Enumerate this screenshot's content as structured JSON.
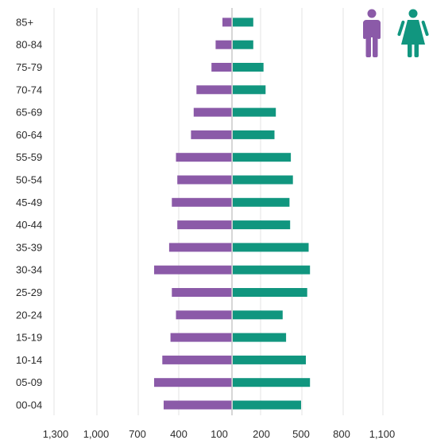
{
  "chart_data": {
    "type": "bar",
    "orientation": "horizontal",
    "subtype": "population-pyramid",
    "categories": [
      "00-04",
      "05-09",
      "10-14",
      "15-19",
      "20-24",
      "25-29",
      "30-34",
      "35-39",
      "40-44",
      "45-49",
      "50-54",
      "55-59",
      "60-64",
      "65-69",
      "70-74",
      "75-79",
      "80-84",
      "85+"
    ],
    "series": [
      {
        "values": [
          500,
          570,
          510,
          450,
          410,
          440,
          570,
          460,
          400,
          440,
          400,
          410,
          300,
          280,
          260,
          150,
          120,
          70
        ],
        "color": "#8b5aa8",
        "side": "left",
        "icon": "male-person-icon"
      },
      {
        "values": [
          500,
          565,
          535,
          390,
          365,
          545,
          565,
          555,
          420,
          415,
          440,
          425,
          305,
          315,
          240,
          225,
          150,
          150
        ],
        "color": "#11967f",
        "side": "right",
        "icon": "female-person-icon"
      }
    ],
    "x_tick_labels": [
      "1,300",
      "1,000",
      "700",
      "400",
      "100",
      "100",
      "200",
      "500",
      "800",
      "1,100"
    ],
    "x_grid": true,
    "title": "",
    "xlabel": "",
    "ylabel": ""
  }
}
